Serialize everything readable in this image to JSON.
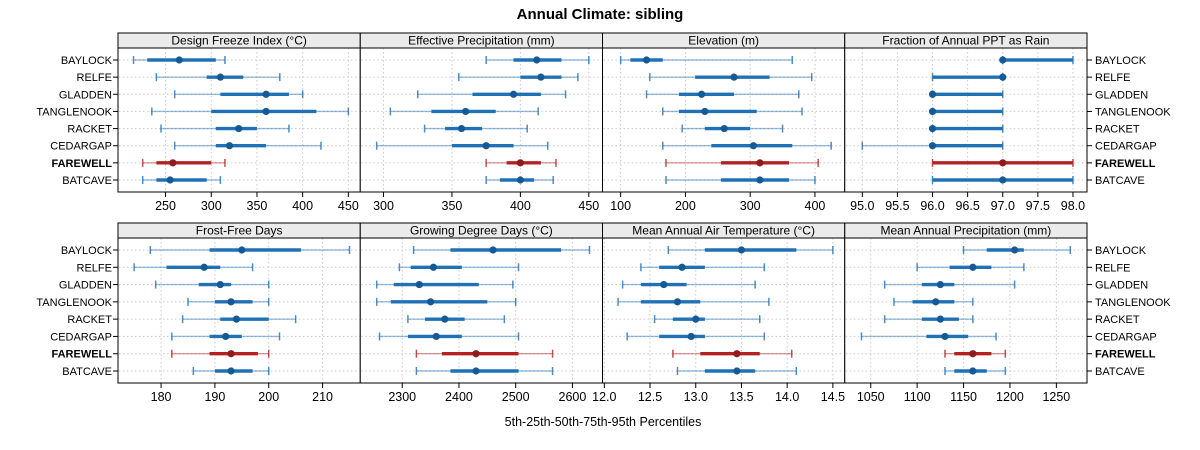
{
  "title": "Annual Climate: sibling",
  "xlabel": "5th-25th-50th-75th-95th Percentiles",
  "sites": [
    "BAYLOCK",
    "RELFE",
    "GLADDEN",
    "TANGLENOOK",
    "RACKET",
    "CEDARGAP",
    "FAREWELL",
    "BATCAVE"
  ],
  "highlight_site": "FAREWELL",
  "colors": {
    "blue": "#2171b5",
    "blue_dark": "#155a94",
    "red": "#b22222",
    "red_dark": "#8f1c1c",
    "grid": "#c9c9c9",
    "strip_bg": "#ebebeb",
    "border": "#000000"
  },
  "chart_data": {
    "type": "dotplot-interval",
    "title": "Annual Climate: sibling",
    "xlabel": "5th-25th-50th-75th-95th Percentiles",
    "percentiles": [
      5,
      25,
      50,
      75,
      95
    ],
    "grid": true,
    "legend_position": "none",
    "sites": [
      "BAYLOCK",
      "RELFE",
      "GLADDEN",
      "TANGLENOOK",
      "RACKET",
      "CEDARGAP",
      "FAREWELL",
      "BATCAVE"
    ],
    "panels": [
      {
        "title": "Design Freeze Index (°C)",
        "x_tick_labels": [
          "250",
          "300",
          "350",
          "400",
          "450"
        ],
        "x_tick_values": [
          250,
          300,
          350,
          400,
          450
        ],
        "xlim": [
          198,
          463
        ],
        "values": [
          [
            215,
            230,
            265,
            305,
            315
          ],
          [
            240,
            295,
            310,
            335,
            375
          ],
          [
            260,
            310,
            360,
            385,
            400
          ],
          [
            235,
            300,
            360,
            415,
            450
          ],
          [
            245,
            305,
            330,
            350,
            385
          ],
          [
            260,
            305,
            320,
            360,
            420
          ],
          [
            225,
            240,
            258,
            300,
            315
          ],
          [
            225,
            240,
            255,
            295,
            310
          ]
        ]
      },
      {
        "title": "Effective Precipitation (mm)",
        "x_tick_labels": [
          "300",
          "350",
          "400",
          "450"
        ],
        "x_tick_values": [
          300,
          350,
          400,
          450
        ],
        "xlim": [
          283,
          460
        ],
        "values": [
          [
            375,
            395,
            412,
            430,
            450
          ],
          [
            355,
            400,
            415,
            430,
            442
          ],
          [
            325,
            365,
            395,
            415,
            433
          ],
          [
            305,
            335,
            360,
            382,
            413
          ],
          [
            330,
            345,
            357,
            372,
            405
          ],
          [
            295,
            350,
            375,
            395,
            420
          ],
          [
            375,
            390,
            400,
            415,
            426
          ],
          [
            375,
            385,
            400,
            410,
            424
          ]
        ]
      },
      {
        "title": "Elevation (m)",
        "x_tick_labels": [
          "100",
          "200",
          "300",
          "400"
        ],
        "x_tick_values": [
          100,
          200,
          300,
          400
        ],
        "xlim": [
          72,
          446
        ],
        "values": [
          [
            100,
            115,
            140,
            165,
            365
          ],
          [
            145,
            215,
            275,
            330,
            395
          ],
          [
            140,
            190,
            225,
            275,
            375
          ],
          [
            165,
            190,
            230,
            310,
            380
          ],
          [
            195,
            230,
            260,
            300,
            350
          ],
          [
            165,
            240,
            305,
            365,
            425
          ],
          [
            170,
            255,
            315,
            360,
            405
          ],
          [
            170,
            255,
            315,
            360,
            400
          ]
        ]
      },
      {
        "title": "Fraction of Annual PPT as Rain",
        "x_tick_labels": [
          "95.0",
          "95.5",
          "96.0",
          "96.5",
          "97.0",
          "97.5",
          "98.0"
        ],
        "x_tick_values": [
          95.0,
          95.5,
          96.0,
          96.5,
          97.0,
          97.5,
          98.0
        ],
        "xlim": [
          94.75,
          98.2
        ],
        "values": [
          [
            97,
            97,
            97,
            98,
            98
          ],
          [
            96,
            96,
            97,
            97,
            97
          ],
          [
            96,
            96,
            96,
            97,
            97
          ],
          [
            96,
            96,
            96,
            97,
            97
          ],
          [
            96,
            96,
            96,
            97,
            97
          ],
          [
            95,
            96,
            96,
            97,
            97
          ],
          [
            96,
            96,
            97,
            98,
            98
          ],
          [
            96,
            96,
            97,
            98,
            98
          ]
        ]
      },
      {
        "title": "Frost-Free Days",
        "x_tick_labels": [
          "180",
          "190",
          "200",
          "210"
        ],
        "x_tick_values": [
          180,
          190,
          200,
          210
        ],
        "xlim": [
          172,
          217
        ],
        "values": [
          [
            178,
            189,
            195,
            206,
            215
          ],
          [
            175,
            181,
            188,
            191,
            197
          ],
          [
            179,
            187,
            191,
            193,
            200
          ],
          [
            185,
            190,
            193,
            197,
            200
          ],
          [
            184,
            191,
            194,
            200,
            205
          ],
          [
            182,
            189,
            192,
            195,
            202
          ],
          [
            182,
            189,
            193,
            198,
            200
          ],
          [
            186,
            190,
            193,
            197,
            200
          ]
        ]
      },
      {
        "title": "Growing Degree Days (°C)",
        "x_tick_labels": [
          "2300",
          "2400",
          "2500",
          "2600"
        ],
        "x_tick_values": [
          2300,
          2400,
          2500,
          2600
        ],
        "xlim": [
          2226,
          2653
        ],
        "values": [
          [
            2320,
            2385,
            2460,
            2580,
            2630
          ],
          [
            2295,
            2315,
            2355,
            2405,
            2505
          ],
          [
            2255,
            2285,
            2330,
            2435,
            2495
          ],
          [
            2255,
            2280,
            2350,
            2450,
            2500
          ],
          [
            2310,
            2340,
            2375,
            2410,
            2480
          ],
          [
            2260,
            2310,
            2360,
            2405,
            2505
          ],
          [
            2325,
            2370,
            2430,
            2505,
            2565
          ],
          [
            2325,
            2385,
            2430,
            2505,
            2565
          ]
        ]
      },
      {
        "title": "Mean Annual Air Temperature (°C)",
        "x_tick_labels": [
          "12.0",
          "12.5",
          "13.0",
          "13.5",
          "14.0",
          "14.5"
        ],
        "x_tick_values": [
          12.0,
          12.5,
          13.0,
          13.5,
          14.0,
          14.5
        ],
        "xlim": [
          11.98,
          14.63
        ],
        "values": [
          [
            12.7,
            13.1,
            13.5,
            14.1,
            14.5
          ],
          [
            12.4,
            12.6,
            12.85,
            13.1,
            13.75
          ],
          [
            12.2,
            12.4,
            12.65,
            12.9,
            13.65
          ],
          [
            12.15,
            12.4,
            12.8,
            13.05,
            13.8
          ],
          [
            12.55,
            12.75,
            13.0,
            13.1,
            13.7
          ],
          [
            12.25,
            12.6,
            12.95,
            13.1,
            13.75
          ],
          [
            12.75,
            13.05,
            13.45,
            13.7,
            14.05
          ],
          [
            12.8,
            13.1,
            13.45,
            13.65,
            14.1
          ]
        ]
      },
      {
        "title": "Mean Annual Precipitation (mm)",
        "x_tick_labels": [
          "1050",
          "1100",
          "1150",
          "1200",
          "1250"
        ],
        "x_tick_values": [
          1050,
          1100,
          1150,
          1200,
          1250
        ],
        "xlim": [
          1022,
          1283
        ],
        "values": [
          [
            1150,
            1175,
            1205,
            1215,
            1265
          ],
          [
            1100,
            1135,
            1160,
            1180,
            1215
          ],
          [
            1065,
            1105,
            1125,
            1140,
            1205
          ],
          [
            1075,
            1095,
            1120,
            1140,
            1160
          ],
          [
            1065,
            1105,
            1125,
            1145,
            1160
          ],
          [
            1040,
            1110,
            1130,
            1155,
            1185
          ],
          [
            1130,
            1140,
            1160,
            1180,
            1195
          ],
          [
            1130,
            1140,
            1160,
            1175,
            1195
          ]
        ]
      }
    ]
  }
}
